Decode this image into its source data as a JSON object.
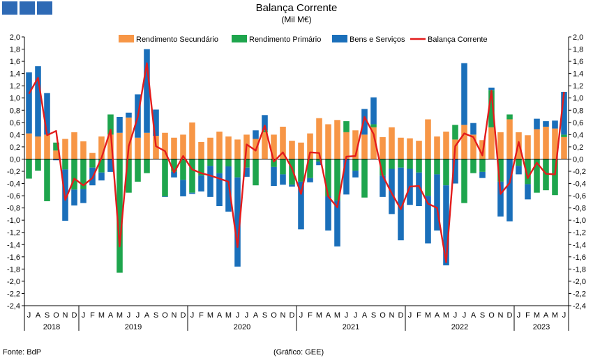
{
  "header": {
    "logo_icon": "bdp-squares-logo-icon"
  },
  "footer": {
    "source": "Fonte: BdP",
    "credit": "(Gráfico: GEE)"
  },
  "chart_data": {
    "type": "bar",
    "title": "Balança Corrente",
    "subtitle": "(Mil M€)",
    "xlabel": "",
    "ylabel": "",
    "ylim": [
      -2.4,
      2.0
    ],
    "grid": false,
    "legend_position": "top",
    "categories": [
      "J",
      "A",
      "S",
      "O",
      "N",
      "D",
      "J",
      "F",
      "M",
      "A",
      "M",
      "J",
      "J",
      "A",
      "S",
      "O",
      "N",
      "D",
      "J",
      "F",
      "M",
      "A",
      "M",
      "J",
      "J",
      "A",
      "S",
      "O",
      "N",
      "D",
      "J",
      "F",
      "M",
      "A",
      "M",
      "J",
      "J",
      "A",
      "S",
      "O",
      "N",
      "D",
      "J",
      "F",
      "M",
      "A",
      "M",
      "J",
      "J",
      "A",
      "S",
      "O",
      "N",
      "D",
      "J",
      "F",
      "M",
      "A",
      "M",
      "J"
    ],
    "years": [
      {
        "label": "2018",
        "start": 0,
        "end": 6
      },
      {
        "label": "2019",
        "start": 6,
        "end": 18
      },
      {
        "label": "2020",
        "start": 18,
        "end": 30
      },
      {
        "label": "2021",
        "start": 30,
        "end": 42
      },
      {
        "label": "2022",
        "start": 42,
        "end": 54
      },
      {
        "label": "2023",
        "start": 54,
        "end": 60
      }
    ],
    "series": [
      {
        "name": "Rendimento Secundário",
        "color": "#f79646",
        "kind": "bar",
        "values": [
          0.42,
          0.37,
          0.4,
          0.14,
          0.33,
          0.44,
          0.29,
          0.1,
          0.37,
          0.4,
          0.43,
          0.68,
          0.35,
          0.43,
          0.38,
          0.43,
          0.35,
          0.4,
          0.6,
          0.28,
          0.35,
          0.45,
          0.37,
          0.32,
          0.4,
          0.33,
          0.44,
          0.4,
          0.53,
          0.3,
          0.27,
          0.42,
          0.67,
          0.57,
          0.64,
          0.44,
          0.47,
          0.4,
          0.52,
          0.36,
          0.52,
          0.35,
          0.34,
          0.3,
          0.65,
          0.37,
          0.45,
          0.32,
          0.56,
          0.4,
          0.31,
          0.52,
          0.44,
          0.65,
          0.44,
          0.39,
          0.49,
          0.53,
          0.5,
          0.36
        ]
      },
      {
        "name": "Rendimento Primário",
        "color": "#1ea54d",
        "kind": "bar",
        "values": [
          -0.32,
          -0.19,
          -0.69,
          0.13,
          -0.17,
          -0.5,
          -0.49,
          -0.14,
          -0.22,
          0.33,
          -1.86,
          -0.55,
          -0.37,
          -0.23,
          0.0,
          -0.61,
          -0.21,
          -0.34,
          -0.55,
          -0.27,
          -0.11,
          -0.23,
          -0.12,
          -0.3,
          -0.14,
          -0.43,
          0.03,
          -0.13,
          -0.25,
          -0.42,
          -0.37,
          -0.31,
          -0.04,
          -0.61,
          -0.68,
          0.18,
          -0.19,
          -0.63,
          0.05,
          -0.27,
          -0.16,
          -0.14,
          -0.16,
          -0.22,
          -0.6,
          -0.25,
          -0.43,
          0.24,
          -0.72,
          -0.23,
          -0.21,
          0.61,
          -0.37,
          0.08,
          -0.11,
          -0.41,
          -0.55,
          -0.51,
          -0.59,
          0.04
        ]
      },
      {
        "name": "Bens e Serviços",
        "color": "#1a6fba",
        "kind": "bar",
        "values": [
          1.0,
          1.15,
          0.68,
          -0.02,
          -0.84,
          -0.26,
          -0.23,
          -0.29,
          -0.13,
          -0.21,
          0.26,
          0.08,
          0.71,
          1.37,
          0.43,
          -0.01,
          -0.09,
          -0.27,
          -0.02,
          -0.26,
          -0.51,
          -0.54,
          -0.74,
          -1.46,
          -0.15,
          0.14,
          0.25,
          -0.31,
          -0.17,
          -0.03,
          -0.78,
          -0.07,
          -0.06,
          -0.56,
          -0.75,
          -0.58,
          -0.11,
          0.42,
          0.44,
          -0.35,
          -0.74,
          -1.19,
          -0.59,
          -0.55,
          -0.78,
          -0.92,
          -1.31,
          -0.4,
          1.01,
          0.19,
          -0.1,
          0.04,
          -0.57,
          -1.02,
          -0.14,
          -0.25,
          0.17,
          0.09,
          0.13,
          0.7
        ]
      },
      {
        "name": "Balança Corrente",
        "color": "#e31c1c",
        "kind": "line",
        "values": [
          1.07,
          1.33,
          0.39,
          0.46,
          -0.67,
          -0.32,
          -0.43,
          -0.31,
          0.02,
          0.48,
          -1.43,
          0.21,
          0.69,
          1.57,
          0.21,
          0.13,
          -0.22,
          0.05,
          -0.17,
          -0.23,
          -0.27,
          -0.32,
          -0.37,
          -1.44,
          0.24,
          0.14,
          0.55,
          -0.04,
          0.11,
          -0.15,
          -0.57,
          0.11,
          0.1,
          -0.61,
          -0.79,
          0.04,
          0.05,
          0.69,
          0.41,
          -0.27,
          -0.56,
          -0.82,
          -0.45,
          -0.44,
          -0.73,
          -0.8,
          -1.69,
          0.21,
          0.42,
          0.36,
          0.06,
          1.12,
          -0.57,
          -0.39,
          0.28,
          -0.31,
          -0.06,
          -0.24,
          -0.25,
          1.1
        ]
      }
    ]
  }
}
